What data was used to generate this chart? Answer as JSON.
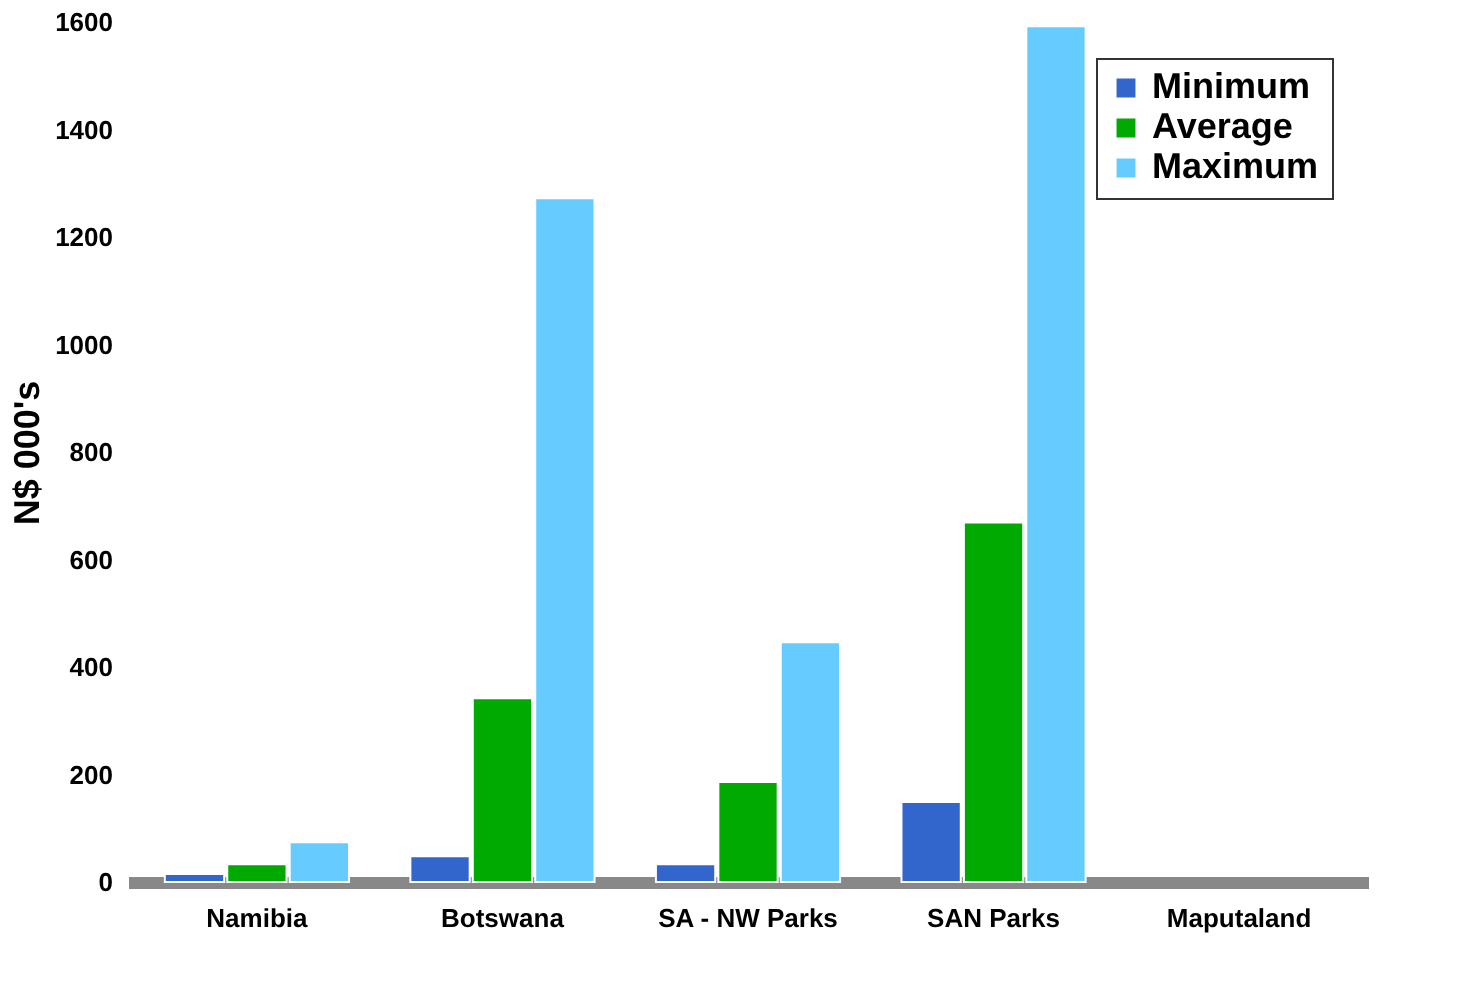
{
  "chart_data": {
    "type": "bar",
    "ylabel": "N$ 000's",
    "categories": [
      "Namibia",
      "Botswana",
      "SA - NW Parks",
      "SAN Parks",
      "Maputaland"
    ],
    "series": [
      {
        "name": "Minimum",
        "color": "#3366cc",
        "values": [
          15,
          48,
          33,
          149,
          null
        ]
      },
      {
        "name": "Average",
        "color": "#00aa00",
        "values": [
          33,
          342,
          186,
          669,
          null
        ]
      },
      {
        "name": "Maximum",
        "color": "#66ccff",
        "values": [
          74,
          1272,
          446,
          1592,
          null
        ]
      }
    ],
    "ylim": [
      0,
      1600
    ],
    "yticks": [
      0,
      200,
      400,
      600,
      800,
      1000,
      1200,
      1400,
      1600
    ],
    "grid": false,
    "legend": "top right"
  }
}
